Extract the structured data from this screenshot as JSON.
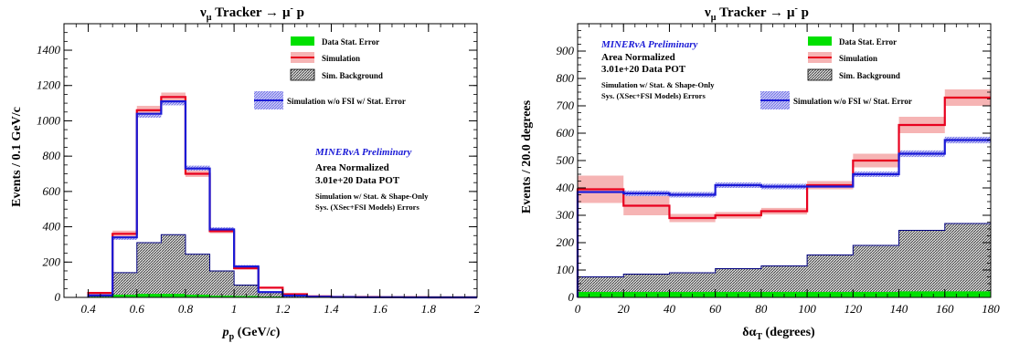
{
  "chart_data": [
    {
      "type": "histogram",
      "title": "ν_μ Tracker → μ⁻ p",
      "title_parts": {
        "nu": "ν",
        "nu_sub": "μ",
        "tracker": " Tracker ",
        "arrow": "→",
        "mu": "μ",
        "mu_sup": "-",
        "p": " p"
      },
      "xlabel": "p_p (GeV/c)",
      "xlabel_parts": {
        "p": "p",
        "sub": "p",
        "unit_open": " (GeV/",
        "c": "c",
        "unit_close": ")"
      },
      "ylabel": "Events / 0.1 GeV/c",
      "xlim": [
        0.3,
        2.0
      ],
      "ylim": [
        0,
        1550
      ],
      "xticks": [
        "0.4",
        "0.6",
        "0.8",
        "1",
        "1.2",
        "1.4",
        "1.6",
        "1.8",
        "2"
      ],
      "xtick_values": [
        0.4,
        0.6,
        0.8,
        1.0,
        1.2,
        1.4,
        1.6,
        1.8,
        2.0
      ],
      "yticks": [
        "0",
        "200",
        "400",
        "600",
        "800",
        "1000",
        "1200",
        "1400"
      ],
      "ytick_values": [
        0,
        200,
        400,
        600,
        800,
        1000,
        1200,
        1400
      ],
      "bin_edges": [
        0.4,
        0.5,
        0.6,
        0.7,
        0.8,
        0.9,
        1.0,
        1.1,
        1.2,
        1.3,
        1.4,
        1.5,
        1.6,
        1.7,
        1.8,
        1.9,
        2.0
      ],
      "series": [
        {
          "name": "Simulation",
          "color": "#e8001e",
          "values": [
            25,
            360,
            1060,
            1135,
            700,
            375,
            165,
            55,
            18,
            6,
            3,
            2,
            1,
            1,
            0,
            0
          ],
          "band": [
            6,
            18,
            25,
            25,
            18,
            12,
            8,
            4,
            2,
            1,
            1,
            0,
            0,
            0,
            0,
            0
          ]
        },
        {
          "name": "Simulation w/o FSI w/ Stat. Error",
          "color": "#1a1ad6",
          "values": [
            12,
            340,
            1040,
            1110,
            730,
            385,
            175,
            30,
            10,
            4,
            2,
            1,
            1,
            0,
            0,
            0
          ],
          "band": [
            4,
            14,
            22,
            22,
            16,
            12,
            8,
            4,
            2,
            1,
            1,
            0,
            0,
            0,
            0,
            0
          ]
        },
        {
          "name": "Sim. Background",
          "color": "#000080",
          "values": [
            8,
            140,
            310,
            355,
            245,
            150,
            70,
            28,
            10,
            4,
            2,
            1,
            0,
            0,
            0,
            0
          ]
        },
        {
          "name": "Data Stat. Error",
          "color": "#00e000",
          "values": [
            4,
            15,
            20,
            20,
            15,
            10,
            8,
            5,
            3,
            2,
            1,
            1,
            0,
            0,
            0,
            0
          ]
        }
      ],
      "legend": [
        {
          "label": "Data Stat. Error",
          "swatch": "green-fill"
        },
        {
          "label": "Simulation",
          "swatch": "red-line"
        },
        {
          "label": "Sim. Background",
          "swatch": "hatched"
        },
        {
          "label": "Simulation w/o FSI w/ Stat. Error",
          "swatch": "blue-line"
        }
      ],
      "annotations": {
        "preliminary": "MINERνA Preliminary",
        "norm": "Area Normalized",
        "pot": "3.01e+20 Data POT",
        "sys1": "Simulation w/ Stat. & Shape-Only",
        "sys2": "Sys. (XSec+FSI Models) Errors"
      }
    },
    {
      "type": "histogram",
      "title": "ν_μ Tracker → μ⁻ p",
      "title_parts": {
        "nu": "ν",
        "nu_sub": "μ",
        "tracker": " Tracker ",
        "arrow": "→",
        "mu": "μ",
        "mu_sup": "-",
        "p": " p"
      },
      "xlabel": "δα_T (degrees)",
      "xlabel_parts": {
        "main": "δα",
        "sub": "T",
        "unit": " (degrees)"
      },
      "ylabel": "Events / 20.0 degrees",
      "xlim": [
        0,
        180
      ],
      "ylim": [
        0,
        1000
      ],
      "xticks": [
        "0",
        "20",
        "40",
        "60",
        "80",
        "100",
        "120",
        "140",
        "160",
        "180"
      ],
      "xtick_values": [
        0,
        20,
        40,
        60,
        80,
        100,
        120,
        140,
        160,
        180
      ],
      "yticks": [
        "0",
        "100",
        "200",
        "300",
        "400",
        "500",
        "600",
        "700",
        "800",
        "900"
      ],
      "ytick_values": [
        0,
        100,
        200,
        300,
        400,
        500,
        600,
        700,
        800,
        900
      ],
      "bin_edges": [
        0,
        20,
        40,
        60,
        80,
        100,
        120,
        140,
        160,
        180
      ],
      "series": [
        {
          "name": "Simulation",
          "color": "#e8001e",
          "values": [
            395,
            335,
            290,
            300,
            315,
            410,
            500,
            630,
            730
          ],
          "band": [
            50,
            35,
            15,
            12,
            12,
            15,
            25,
            30,
            30
          ]
        },
        {
          "name": "Simulation w/o FSI w/ Stat. Error",
          "color": "#1a1ad6",
          "values": [
            385,
            380,
            375,
            410,
            405,
            405,
            450,
            525,
            575
          ],
          "band": [
            10,
            10,
            10,
            10,
            10,
            10,
            10,
            12,
            12
          ]
        },
        {
          "name": "Sim. Background",
          "color": "#000080",
          "values": [
            75,
            85,
            90,
            105,
            115,
            155,
            190,
            245,
            270
          ]
        },
        {
          "name": "Data Stat. Error",
          "color": "#00e000",
          "values": [
            20,
            20,
            20,
            20,
            20,
            20,
            20,
            22,
            22
          ]
        }
      ],
      "legend": [
        {
          "label": "Data Stat. Error",
          "swatch": "green-fill"
        },
        {
          "label": "Simulation",
          "swatch": "red-line"
        },
        {
          "label": "Sim. Background",
          "swatch": "hatched"
        },
        {
          "label": "Simulation w/o FSI w/ Stat. Error",
          "swatch": "blue-line"
        }
      ],
      "annotations": {
        "preliminary": "MINERνA Preliminary",
        "norm": "Area Normalized",
        "pot": "3.01e+20 Data POT",
        "sys1": "Simulation w/ Stat. & Shape-Only",
        "sys2": "Sys. (XSec+FSI Models) Errors"
      }
    }
  ]
}
